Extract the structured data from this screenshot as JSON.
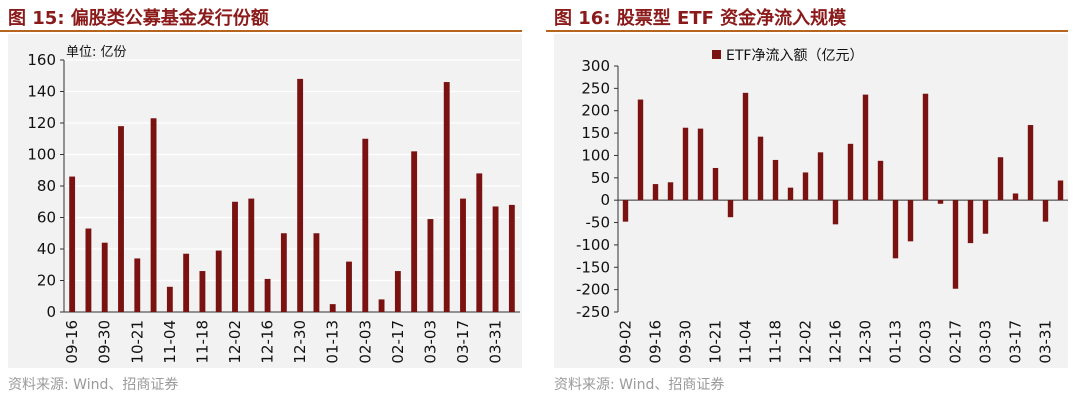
{
  "left": {
    "title": "图 15:  偏股类公募基金发行份额",
    "source": "资料来源:  Wind、招商证券",
    "chart_data": {
      "type": "bar",
      "title": "图 15:  偏股类公募基金发行份额",
      "unit_label": "单位:  亿份",
      "ylim": [
        0,
        160
      ],
      "yticks": [
        0,
        20,
        40,
        60,
        80,
        100,
        120,
        140,
        160
      ],
      "grid": true,
      "bar_color": "#7a1212",
      "x_tick_labels": [
        "09-16",
        "09-30",
        "10-21",
        "11-04",
        "11-18",
        "12-02",
        "12-16",
        "12-30",
        "01-13",
        "02-03",
        "02-17",
        "03-03",
        "03-17",
        "03-31"
      ],
      "values": [
        86,
        53,
        44,
        118,
        34,
        123,
        16,
        37,
        26,
        39,
        70,
        72,
        21,
        50,
        148,
        50,
        5,
        32,
        110,
        8,
        26,
        102,
        59,
        146,
        72,
        88,
        67,
        68
      ]
    }
  },
  "right": {
    "title": "图 16:  股票型 ETF 资金净流入规模",
    "source": "资料来源:  Wind、招商证券",
    "chart_data": {
      "type": "bar",
      "title": "图 16:  股票型 ETF 资金净流入规模",
      "legend": "ETF净流入额（亿元）",
      "legend_position": "top",
      "ylim": [
        -250,
        300
      ],
      "yticks": [
        -250,
        -200,
        -150,
        -100,
        -50,
        0,
        50,
        100,
        150,
        200,
        250,
        300
      ],
      "grid": false,
      "bar_color": "#7a1212",
      "x_tick_labels": [
        "09-02",
        "09-16",
        "09-30",
        "10-21",
        "11-04",
        "11-18",
        "12-02",
        "12-16",
        "12-30",
        "01-13",
        "02-03",
        "02-17",
        "03-03",
        "03-17",
        "03-31"
      ],
      "values": [
        -48,
        225,
        36,
        40,
        162,
        160,
        72,
        -38,
        240,
        142,
        90,
        28,
        62,
        107,
        -54,
        126,
        236,
        88,
        -130,
        -92,
        238,
        -8,
        -198,
        -96,
        -75,
        96,
        15,
        168,
        -48,
        44
      ]
    }
  }
}
